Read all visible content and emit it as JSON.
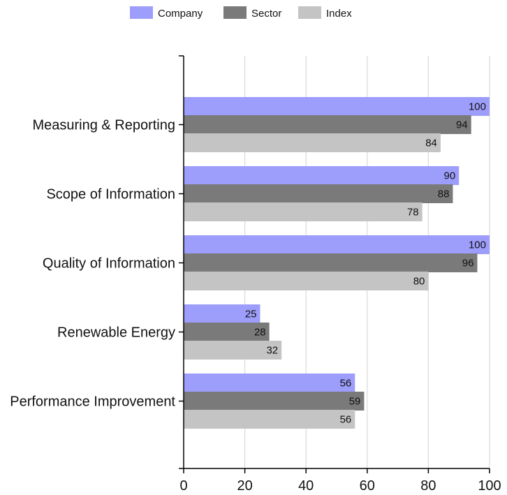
{
  "chart_data": {
    "type": "bar",
    "orientation": "horizontal",
    "categories": [
      "Measuring & Reporting",
      "Scope of Information",
      "Quality of Information",
      "Renewable Energy",
      "Performance Improvement"
    ],
    "series": [
      {
        "name": "Company",
        "color": "#9d9dfb",
        "values": [
          100,
          90,
          100,
          25,
          56
        ]
      },
      {
        "name": "Sector",
        "color": "#7a7a7a",
        "values": [
          94,
          88,
          96,
          28,
          59
        ]
      },
      {
        "name": "Index",
        "color": "#c4c4c4",
        "values": [
          84,
          78,
          80,
          32,
          56
        ]
      }
    ],
    "title": "",
    "xlabel": "",
    "ylabel": "",
    "xlim": [
      0,
      100
    ],
    "xticks": [
      0,
      20,
      40,
      60,
      80,
      100
    ],
    "grid": true,
    "legend_position": "top-center",
    "data_labels": true
  }
}
